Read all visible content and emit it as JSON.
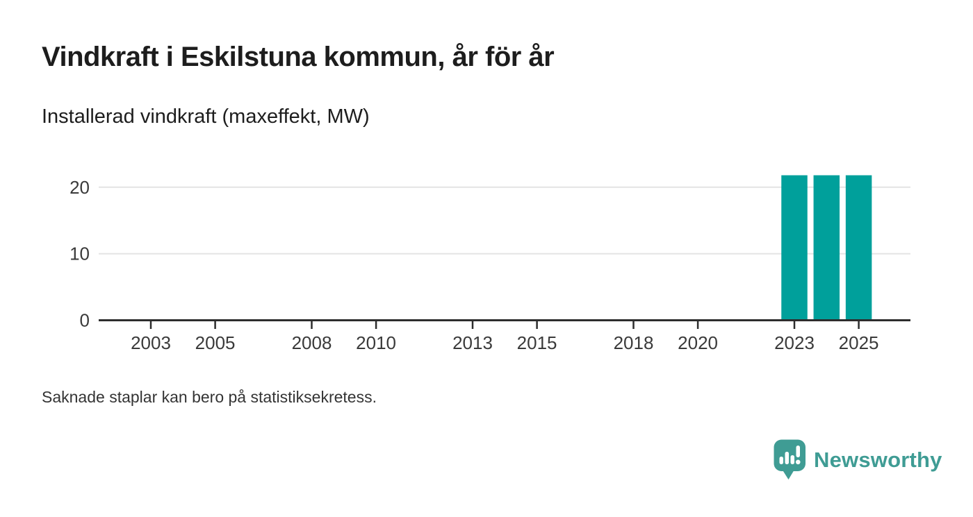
{
  "header": {
    "title": "Vindkraft i Eskilstuna kommun, år för år",
    "subtitle": "Installerad vindkraft (maxeffekt, MW)"
  },
  "chart_data": {
    "type": "bar",
    "title": "Vindkraft i Eskilstuna kommun, år för år",
    "subtitle": "Installerad vindkraft (maxeffekt, MW)",
    "xlabel": "",
    "ylabel": "Installerad vindkraft (maxeffekt, MW)",
    "categories": [
      2003,
      2004,
      2005,
      2006,
      2007,
      2008,
      2009,
      2010,
      2011,
      2012,
      2013,
      2014,
      2015,
      2016,
      2017,
      2018,
      2019,
      2020,
      2021,
      2022,
      2023,
      2024,
      2025
    ],
    "values": [
      null,
      null,
      null,
      null,
      null,
      null,
      null,
      null,
      null,
      null,
      null,
      null,
      null,
      null,
      null,
      null,
      null,
      null,
      null,
      null,
      21.8,
      21.8,
      21.8
    ],
    "x_tick_labels": [
      "2003",
      "2005",
      "2008",
      "2010",
      "2013",
      "2015",
      "2018",
      "2020",
      "2023",
      "2025"
    ],
    "y_ticks": [
      0,
      10,
      20
    ],
    "ylim": [
      0,
      23
    ],
    "xlim": [
      2001.4,
      2026.6
    ],
    "grid": "horizontal-light",
    "legend": "none",
    "colors": {
      "bar": "#00a09b",
      "axis": "#2d2d2d",
      "gridline": "#e4e4e4",
      "tick_label": "#3a3a3a"
    }
  },
  "footer": {
    "note": "Saknade staplar kan bero på statistiksekretess.",
    "brand": "Newsworthy",
    "brand_color": "#3f9c94"
  },
  "icons": {
    "logo": "newsworthy-speech-bubble-bar-chart-icon"
  }
}
